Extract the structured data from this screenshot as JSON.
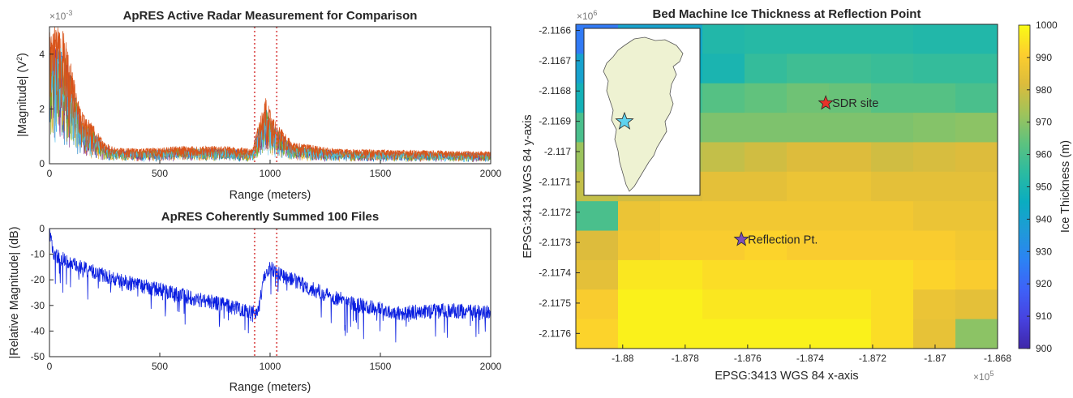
{
  "chart_data": [
    {
      "type": "line",
      "title": "ApRES Active Radar Measurement for Comparison",
      "xlabel": "Range (meters)",
      "ylabel_parts": [
        "|Magnitude| (V",
        "2",
        ")"
      ],
      "exponent_label": "×10",
      "exponent_power": "-3",
      "xlim": [
        0,
        2000
      ],
      "ylim": [
        0,
        5
      ],
      "x_ticks": [
        "0",
        "500",
        "1000",
        "1500",
        "2000"
      ],
      "x_tick_values": [
        0,
        500,
        1000,
        1500,
        2000
      ],
      "y_ticks": [
        "0",
        "2",
        "4"
      ],
      "y_tick_values": [
        0,
        2,
        4
      ],
      "markers": [
        930,
        1030
      ],
      "marker_color": "#e06666",
      "series_colors": [
        "#d95319",
        "#0072bd",
        "#edb120",
        "#7e2f8e",
        "#77ac30",
        "#4dbeee"
      ],
      "envelope": [
        [
          0,
          5.0
        ],
        [
          60,
          5.0
        ],
        [
          100,
          3.6
        ],
        [
          140,
          2.0
        ],
        [
          200,
          1.4
        ],
        [
          250,
          0.75
        ],
        [
          300,
          0.6
        ],
        [
          400,
          0.55
        ],
        [
          600,
          0.65
        ],
        [
          800,
          0.65
        ],
        [
          920,
          0.55
        ],
        [
          950,
          1.6
        ],
        [
          980,
          2.4
        ],
        [
          1020,
          1.6
        ],
        [
          1100,
          0.8
        ],
        [
          1300,
          0.55
        ],
        [
          1600,
          0.5
        ],
        [
          2000,
          0.45
        ]
      ]
    },
    {
      "type": "line",
      "title": "ApRES Coherently Summed 100 Files",
      "xlabel": "Range (meters)",
      "ylabel": "|Relative Magnitude| (dB)",
      "xlim": [
        0,
        2000
      ],
      "ylim": [
        -50,
        0
      ],
      "x_ticks": [
        "0",
        "500",
        "1000",
        "1500",
        "2000"
      ],
      "x_tick_values": [
        0,
        500,
        1000,
        1500,
        2000
      ],
      "y_ticks": [
        "0",
        "-10",
        "-20",
        "-30",
        "-40",
        "-50"
      ],
      "y_tick_values": [
        0,
        -10,
        -20,
        -30,
        -40,
        -50
      ],
      "markers": [
        930,
        1030
      ],
      "marker_color": "#e06666",
      "series_color": "#0a1ee0",
      "trend": [
        [
          0,
          -2
        ],
        [
          20,
          -10
        ],
        [
          100,
          -14
        ],
        [
          300,
          -20
        ],
        [
          500,
          -24
        ],
        [
          700,
          -28
        ],
        [
          900,
          -32
        ],
        [
          940,
          -33
        ],
        [
          980,
          -17
        ],
        [
          1000,
          -15
        ],
        [
          1050,
          -18
        ],
        [
          1200,
          -24
        ],
        [
          1400,
          -30
        ],
        [
          1600,
          -33
        ],
        [
          1800,
          -32
        ],
        [
          2000,
          -33
        ]
      ]
    },
    {
      "type": "heatmap",
      "title": "Bed Machine Ice Thickness at Reflection Point",
      "xlabel": "EPSG:3413 WGS 84 x-axis",
      "ylabel": "EPSG:3413 WGS 84 y-axis",
      "x_exponent": "×10",
      "x_exponent_power": "5",
      "y_exponent": "×10",
      "y_exponent_power": "6",
      "xlim": [
        -1.8815,
        -1.868
      ],
      "ylim": [
        -2.11765,
        -2.11658
      ],
      "x_ticks": [
        "-1.88",
        "-1.878",
        "-1.876",
        "-1.874",
        "-1.872",
        "-1.87",
        "-1.868"
      ],
      "x_tick_values": [
        -1.88,
        -1.878,
        -1.876,
        -1.874,
        -1.872,
        -1.87,
        -1.868
      ],
      "y_ticks": [
        "-2.1166",
        "-2.1167",
        "-2.1168",
        "-2.1169",
        "-2.117",
        "-2.1171",
        "-2.1172",
        "-2.1173",
        "-2.1174",
        "-2.1175",
        "-2.1176"
      ],
      "y_tick_values": [
        -2.1166,
        -2.1167,
        -2.1168,
        -2.1169,
        -2.117,
        -2.1171,
        -2.1172,
        -2.1173,
        -2.1174,
        -2.1175,
        -2.1176
      ],
      "colorbar": {
        "label": "Ice Thickness (m)",
        "range": [
          900,
          1000
        ],
        "ticks": [
          "900",
          "910",
          "920",
          "930",
          "940",
          "950",
          "960",
          "970",
          "980",
          "990",
          "1000"
        ],
        "tick_values": [
          900,
          910,
          920,
          930,
          940,
          950,
          960,
          970,
          980,
          990,
          1000
        ],
        "colormap": [
          "#3e26a8",
          "#4742e0",
          "#3e61f8",
          "#2c82f4",
          "#1f9ad8",
          "#0aadc0",
          "#2cbba0",
          "#5ec27e",
          "#a0c35a",
          "#dcbc3c",
          "#fcce2e",
          "#f9fb15"
        ]
      },
      "grid": [
        [
          925,
          940,
          942,
          952,
          953,
          953,
          953,
          953,
          952,
          952
        ],
        [
          940,
          945,
          946,
          950,
          956,
          958,
          958,
          957,
          956,
          956
        ],
        [
          948,
          950,
          958,
          962,
          964,
          966,
          965,
          962,
          962,
          960
        ],
        [
          960,
          964,
          966,
          968,
          968,
          968,
          968,
          968,
          969,
          970
        ],
        [
          972,
          974,
          976,
          978,
          980,
          982,
          982,
          980,
          981,
          982
        ],
        [
          978,
          980,
          982,
          984,
          984,
          986,
          986,
          984,
          984,
          984
        ],
        [
          960,
          986,
          988,
          988,
          988,
          988,
          988,
          988,
          986,
          986
        ],
        [
          982,
          988,
          990,
          990,
          992,
          990,
          990,
          990,
          990,
          988
        ],
        [
          984,
          996,
          996,
          994,
          994,
          994,
          994,
          994,
          992,
          990
        ],
        [
          990,
          998,
          998,
          996,
          996,
          996,
          996,
          994,
          986,
          984
        ],
        [
          992,
          998,
          998,
          998,
          998,
          998,
          998,
          994,
          985,
          970
        ]
      ],
      "points": [
        {
          "label": "SDR site",
          "x": -1.8735,
          "y": -2.11684,
          "color": "#e8322a"
        },
        {
          "label": "Reflection Pt.",
          "x": -1.8762,
          "y": -2.11729,
          "color": "#7c4fb6"
        }
      ],
      "inset": {
        "star_color": "#5fd3ef",
        "land_color": "#eef2d2"
      }
    }
  ]
}
